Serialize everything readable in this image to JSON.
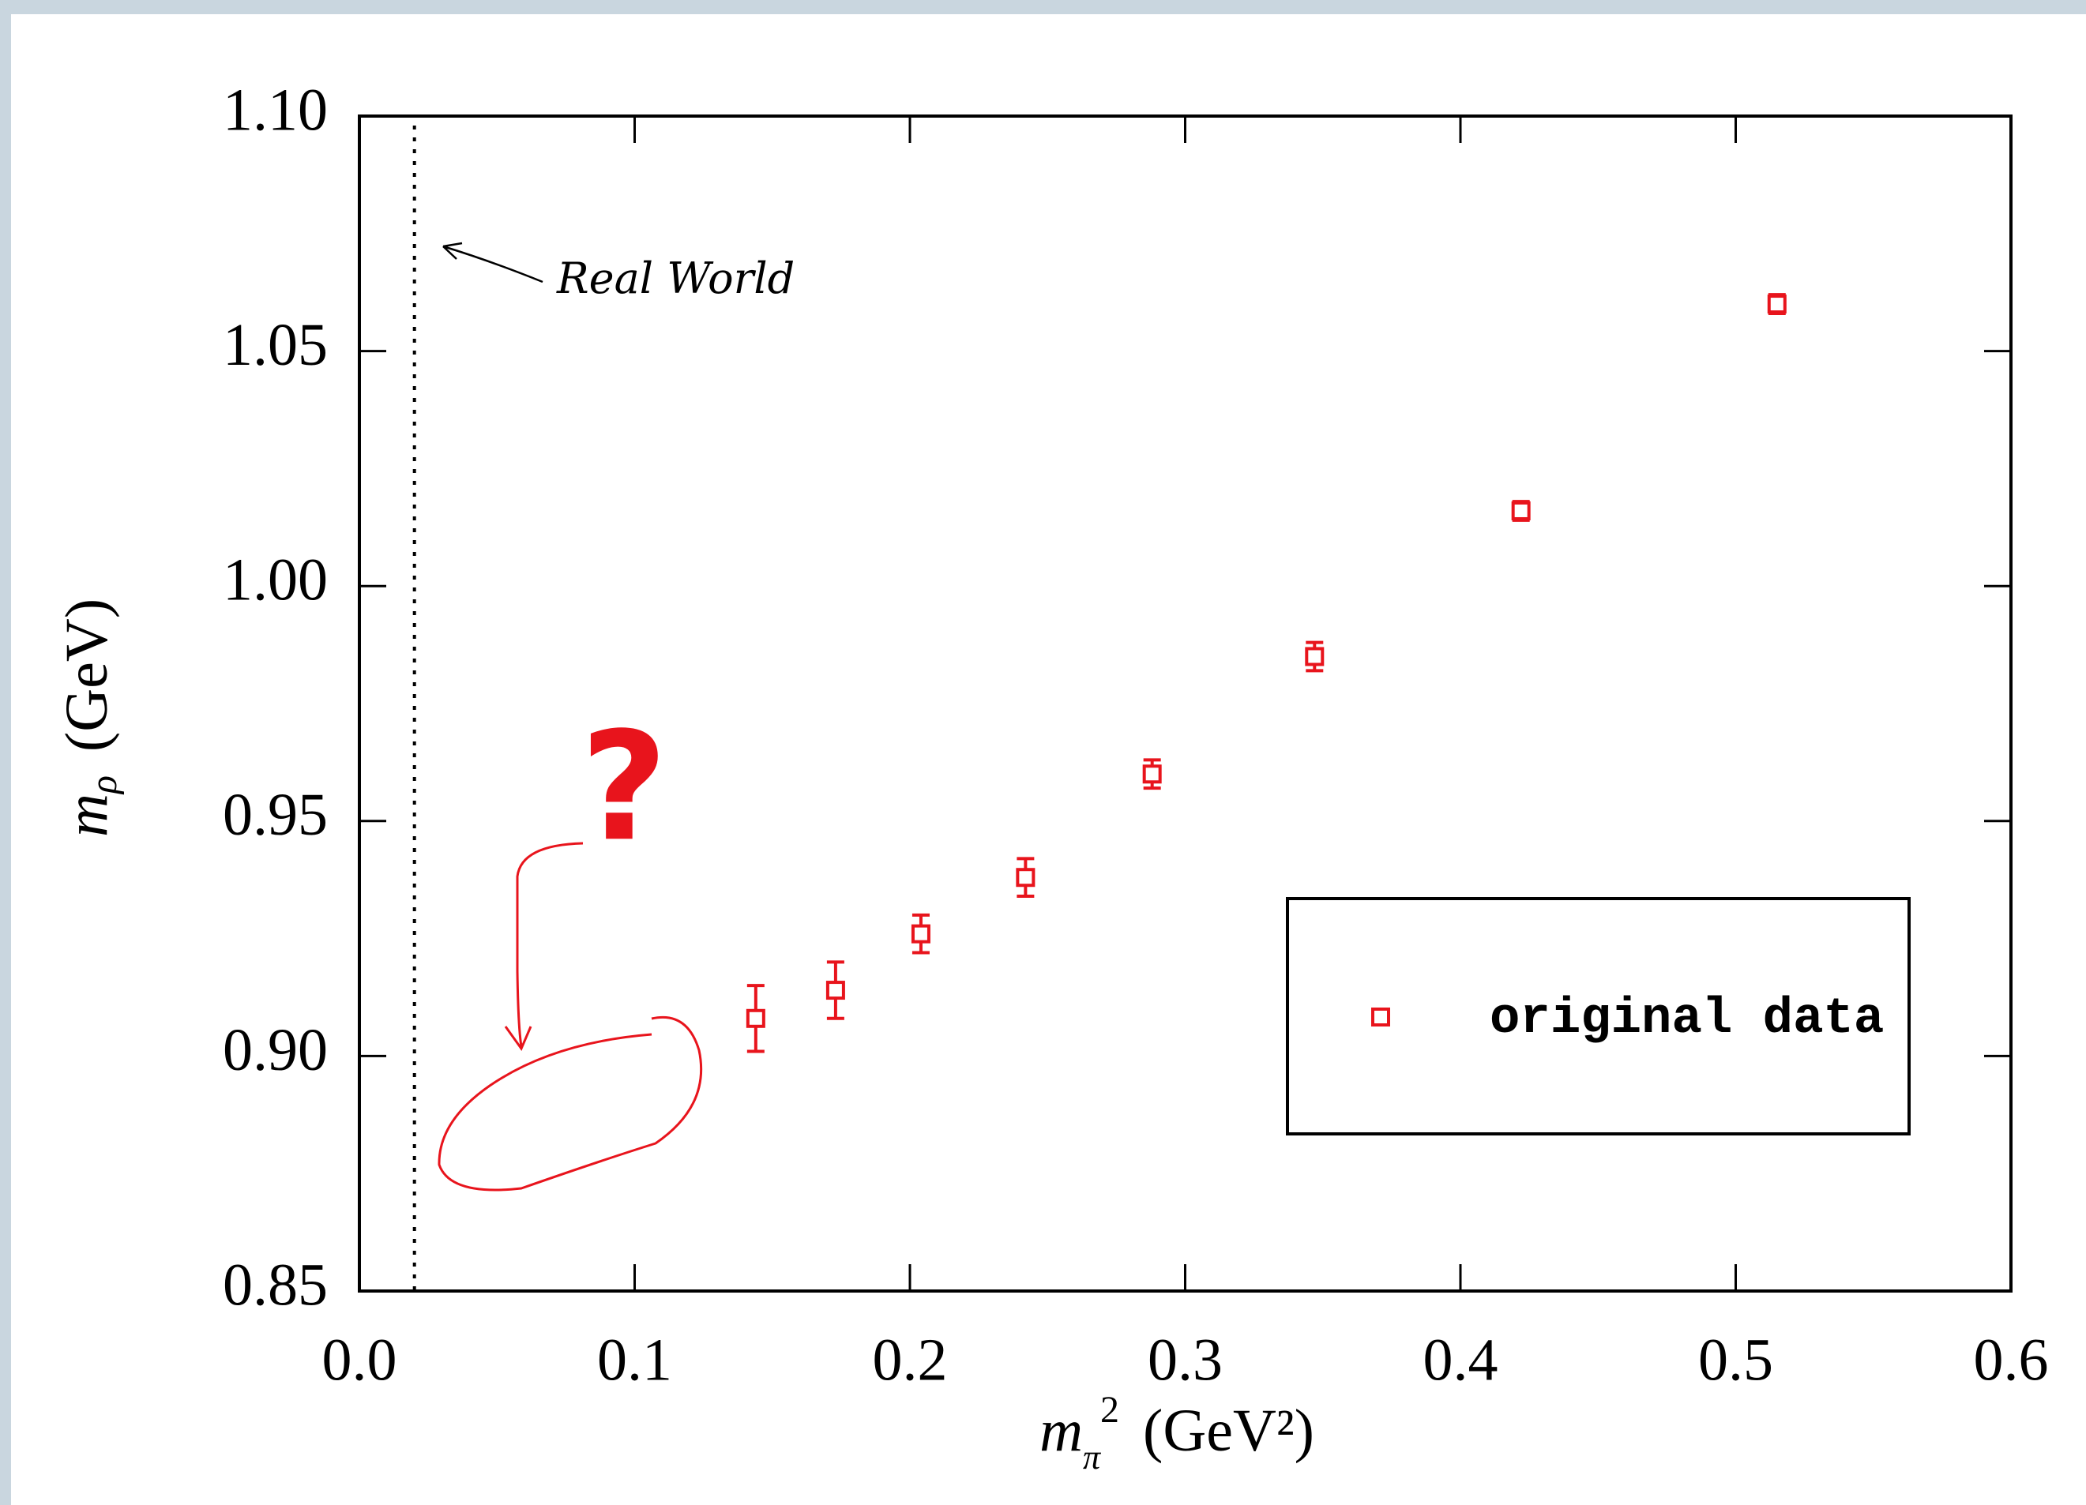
{
  "chart_data": {
    "type": "scatter",
    "x_label": {
      "symbol": "m",
      "subscript": "π",
      "superscript": "2",
      "unit": "(GeV²)"
    },
    "y_label": {
      "symbol": "m",
      "subscript": "ρ",
      "unit": "(GeV)"
    },
    "series": [
      {
        "name": "original data",
        "color": "#e8141c",
        "x": [
          0.144,
          0.173,
          0.204,
          0.242,
          0.288,
          0.347,
          0.422,
          0.515
        ],
        "values": [
          0.908,
          0.914,
          0.926,
          0.938,
          0.96,
          0.985,
          1.016,
          1.06
        ],
        "errors": [
          0.007,
          0.006,
          0.004,
          0.004,
          0.003,
          0.003,
          0.002,
          0.002
        ]
      }
    ],
    "xlim": [
      0,
      0.6
    ],
    "xticks": [
      {
        "value": 0,
        "label": "0.0"
      },
      0.1,
      0.2,
      0.3,
      0.4,
      0.5,
      0.6
    ],
    "ylim": [
      0.85,
      1.1
    ],
    "yticks": [
      0.85,
      {
        "value": 0.9,
        "label": "0.90"
      },
      0.95,
      {
        "value": 1.0,
        "label": "1.00"
      },
      1.05,
      {
        "value": 1.1,
        "label": "1.10"
      }
    ],
    "reference_line": {
      "x": 0.02,
      "label": "Real World"
    },
    "annotation": "?",
    "legend": "right"
  }
}
